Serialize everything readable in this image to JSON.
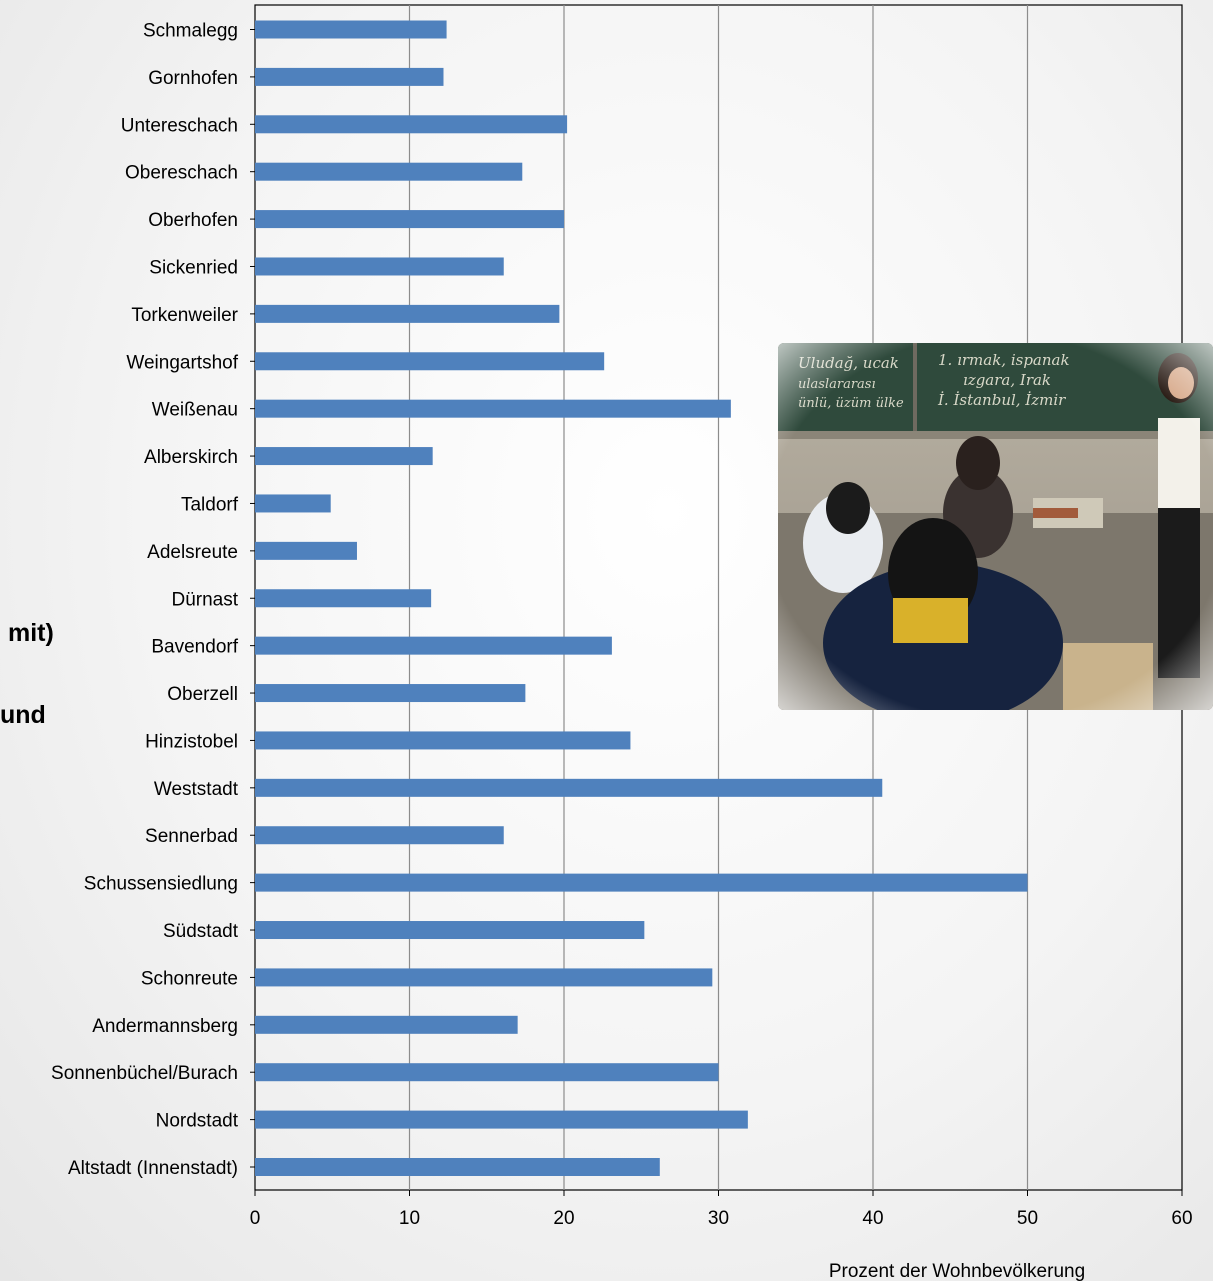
{
  "page_fragments": [
    "mit)",
    "und"
  ],
  "photo": {
    "description": "classroom-photo"
  },
  "chart_data": {
    "type": "bar",
    "orientation": "horizontal",
    "categories": [
      "Schmalegg",
      "Gornhofen",
      "Untereschach",
      "Obereschach",
      "Oberhofen",
      "Sickenried",
      "Torkenweiler",
      "Weingartshof",
      "Weißenau",
      "Alberskirch",
      "Taldorf",
      "Adelsreute",
      "Dürnast",
      "Bavendorf",
      "Oberzell",
      "Hinzistobel",
      "Weststadt",
      "Sennerbad",
      "Schussensiedlung",
      "Südstadt",
      "Schonreute",
      "Andermannsberg",
      "Sonnenbüchel/Burach",
      "Nordstadt",
      "Altstadt (Innenstadt)"
    ],
    "values": [
      12.4,
      12.2,
      20.2,
      17.3,
      20.0,
      16.1,
      19.7,
      22.6,
      30.8,
      11.5,
      4.9,
      6.6,
      11.4,
      23.1,
      17.5,
      24.3,
      40.6,
      16.1,
      50.0,
      25.2,
      29.6,
      17.0,
      30.0,
      31.9,
      26.2
    ],
    "xlim": [
      0,
      60
    ],
    "xticks": [
      0,
      10,
      20,
      30,
      40,
      50,
      60
    ],
    "xlabel": "Prozent der Wohnbevölkerung",
    "ylabel": "",
    "title": "",
    "grid": true,
    "bar_color": "#4f81bd"
  }
}
